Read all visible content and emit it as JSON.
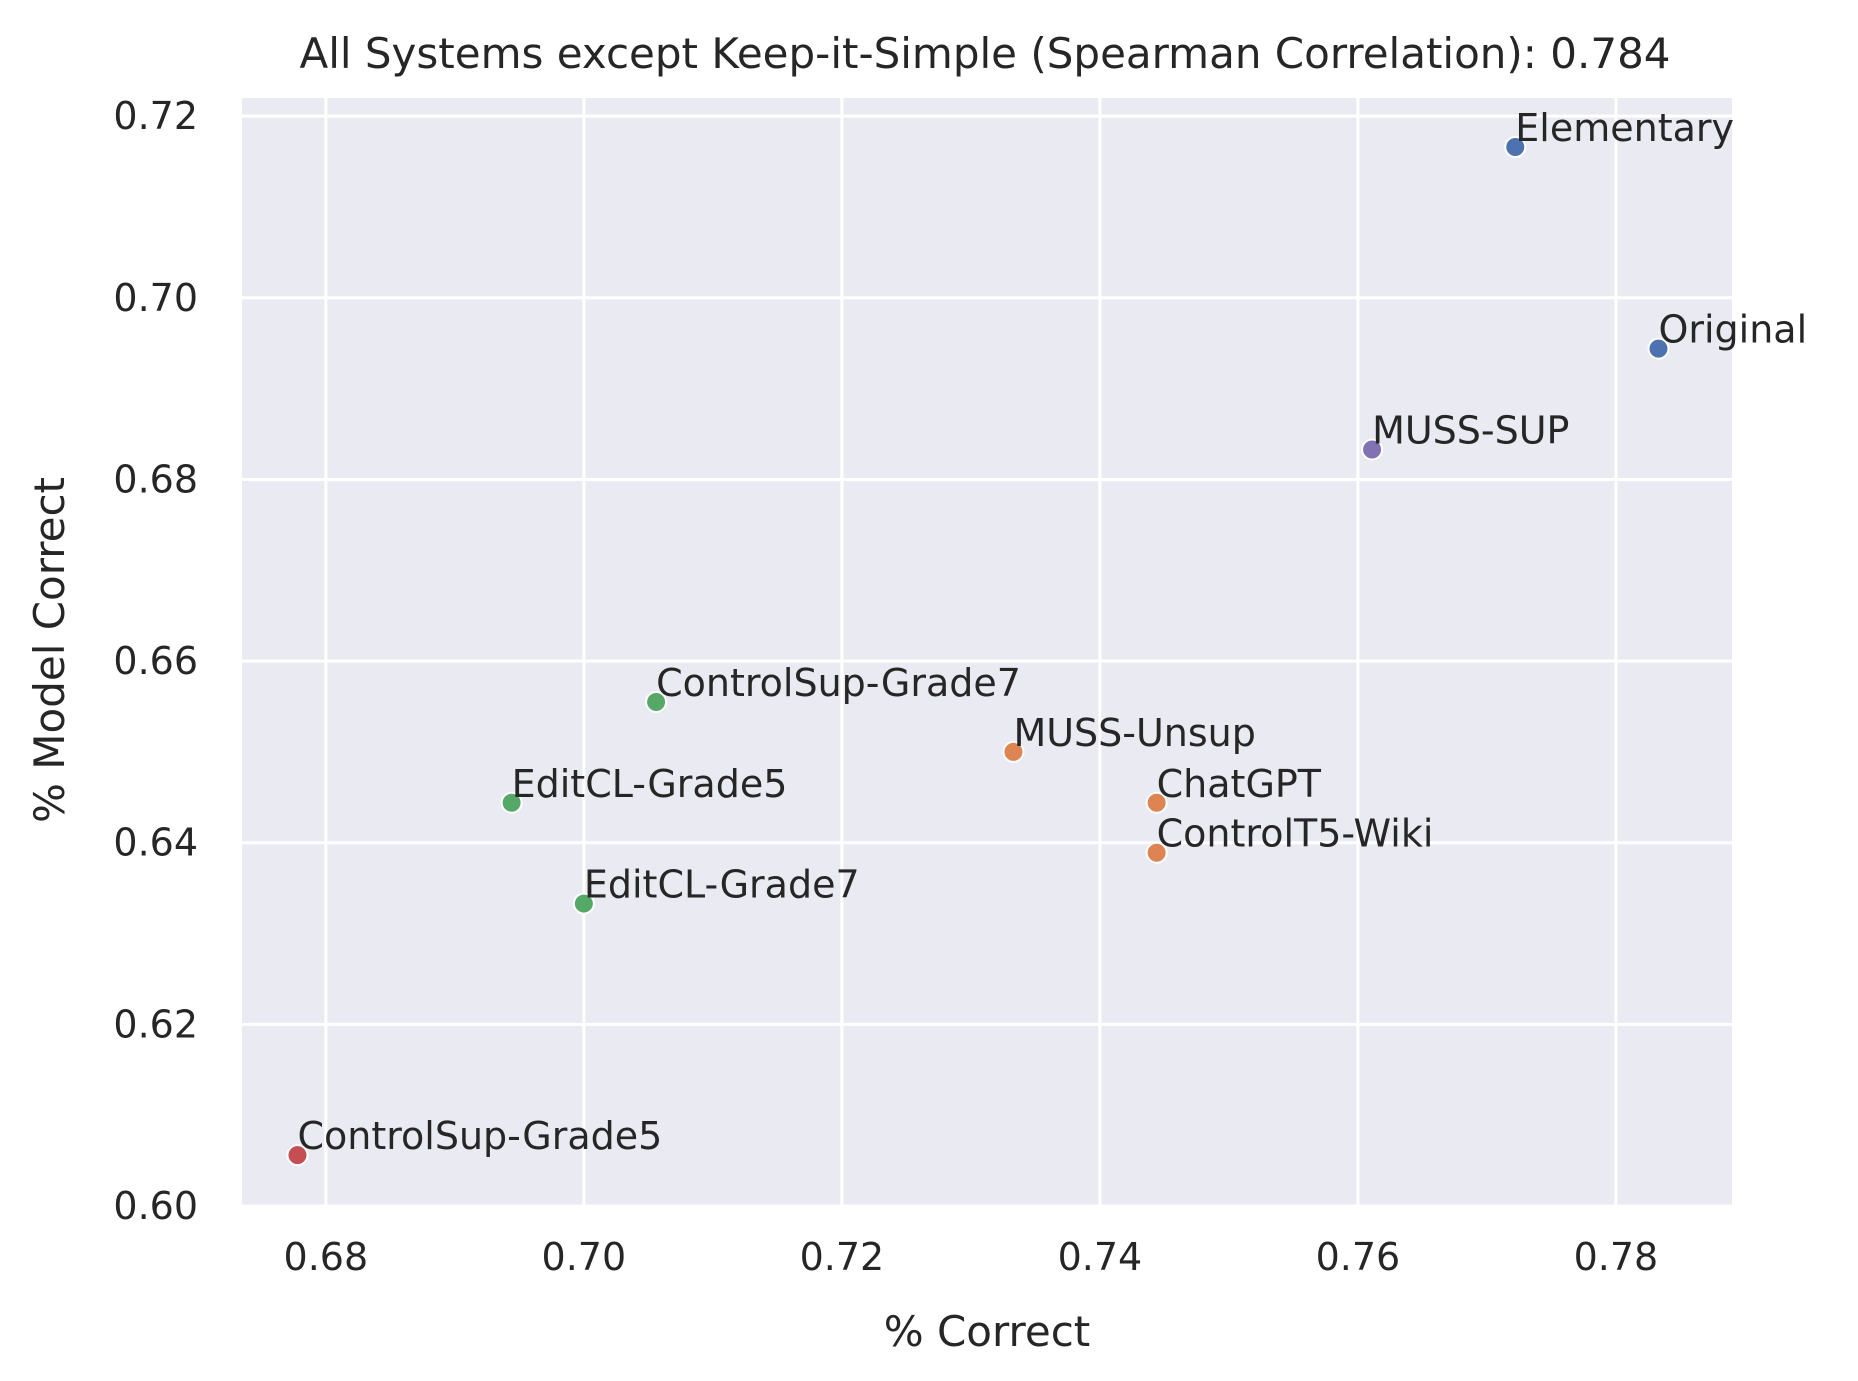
{
  "chart_data": {
    "type": "scatter",
    "title": "All Systems except Keep-it-Simple (Spearman Correlation): 0.784",
    "xlabel": "% Correct",
    "ylabel": "% Model Correct",
    "xlim": [
      0.6735,
      0.789
    ],
    "ylim": [
      0.6,
      0.722
    ],
    "x_ticks": [
      0.68,
      0.7,
      0.72,
      0.74,
      0.76,
      0.78
    ],
    "y_ticks": [
      0.6,
      0.62,
      0.64,
      0.66,
      0.68,
      0.7,
      0.72
    ],
    "x_tick_labels": [
      "0.68",
      "0.70",
      "0.72",
      "0.74",
      "0.76",
      "0.78"
    ],
    "y_tick_labels": [
      "0.60",
      "0.62",
      "0.64",
      "0.66",
      "0.68",
      "0.70",
      "0.72"
    ],
    "grid": true,
    "background_color": "#eaeaf2",
    "points": [
      {
        "label": "Elementary",
        "x": 0.7722,
        "y": 0.7166,
        "color": "#4c72b0"
      },
      {
        "label": "Original",
        "x": 0.7833,
        "y": 0.6944,
        "color": "#4c72b0"
      },
      {
        "label": "MUSS-SUP",
        "x": 0.7611,
        "y": 0.6833,
        "color": "#8172b3"
      },
      {
        "label": "ControlSup-Grade7",
        "x": 0.7056,
        "y": 0.6555,
        "color": "#55a868"
      },
      {
        "label": "MUSS-Unsup",
        "x": 0.7333,
        "y": 0.65,
        "color": "#dd8452"
      },
      {
        "label": "ChatGPT",
        "x": 0.7444,
        "y": 0.6444,
        "color": "#dd8452"
      },
      {
        "label": "EditCL-Grade5",
        "x": 0.6944,
        "y": 0.6444,
        "color": "#55a868"
      },
      {
        "label": "ControlT5-Wiki",
        "x": 0.7444,
        "y": 0.6389,
        "color": "#dd8452"
      },
      {
        "label": "EditCL-Grade7",
        "x": 0.7,
        "y": 0.6333,
        "color": "#55a868"
      },
      {
        "label": "ControlSup-Grade5",
        "x": 0.6778,
        "y": 0.6056,
        "color": "#c44e52"
      }
    ]
  }
}
